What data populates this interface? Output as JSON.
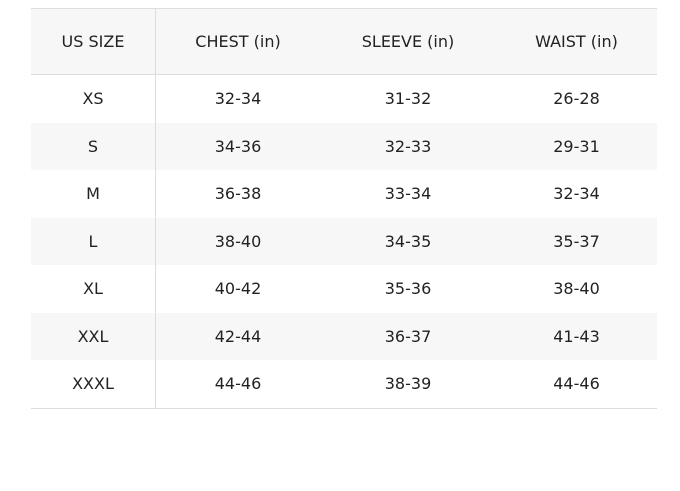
{
  "headers": [
    "US SIZE",
    "CHEST (in)",
    "SLEEVE (in)",
    "WAIST (in)"
  ],
  "rows": [
    [
      "XS",
      "32-34",
      "31-32",
      "26-28"
    ],
    [
      "S",
      "34-36",
      "32-33",
      "29-31"
    ],
    [
      "M",
      "36-38",
      "33-34",
      "32-34"
    ],
    [
      "L",
      "38-40",
      "34-35",
      "35-37"
    ],
    [
      "XL",
      "40-42",
      "35-36",
      "38-40"
    ],
    [
      "XXL",
      "42-44",
      "36-37",
      "41-43"
    ],
    [
      "XXXL",
      "44-46",
      "38-39",
      "44-46"
    ]
  ]
}
